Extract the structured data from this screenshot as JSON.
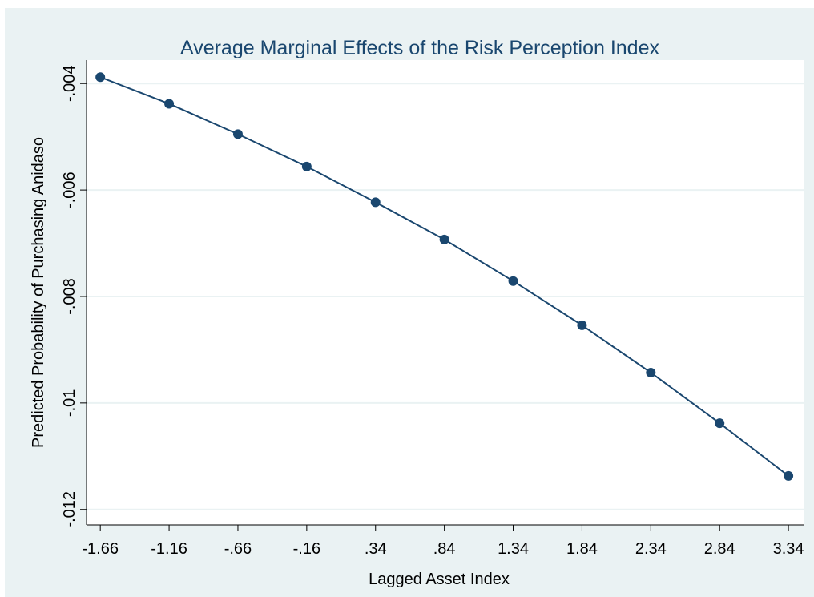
{
  "chart_data": {
    "type": "line",
    "title": "Average Marginal Effects of the Risk Perception Index",
    "x_label": "Lagged Asset Index",
    "y_label": "Predicted Probability of Purchasing Anidaso",
    "x": [
      -1.66,
      -1.16,
      -0.66,
      -0.16,
      0.34,
      0.84,
      1.34,
      1.84,
      2.34,
      2.84,
      3.34
    ],
    "series": [
      {
        "color": "#1a476f",
        "values": [
          -0.00388,
          -0.00438,
          -0.00495,
          -0.00556,
          -0.00623,
          -0.00693,
          -0.00771,
          -0.00854,
          -0.00943,
          -0.01038,
          -0.01137
        ]
      }
    ],
    "xlim": [
      -1.76,
      3.45
    ],
    "ylim": [
      -0.01229,
      -0.00356
    ],
    "xticks": [
      -1.66,
      -1.16,
      {
        "value": -0.66,
        "label": "-.66"
      },
      {
        "value": -0.16,
        "label": "-.16"
      },
      {
        "value": 0.34,
        "label": ".34"
      },
      {
        "value": 0.84,
        "label": ".84"
      },
      1.34,
      1.84,
      2.34,
      2.84,
      3.34
    ],
    "yticks": [
      {
        "value": -0.004,
        "label": "-.004"
      },
      {
        "value": -0.006,
        "label": "-.006"
      },
      {
        "value": -0.008,
        "label": "-.008"
      },
      {
        "value": -0.01,
        "label": "-.01"
      },
      {
        "value": -0.012,
        "label": "-.012"
      }
    ],
    "grid": true
  }
}
